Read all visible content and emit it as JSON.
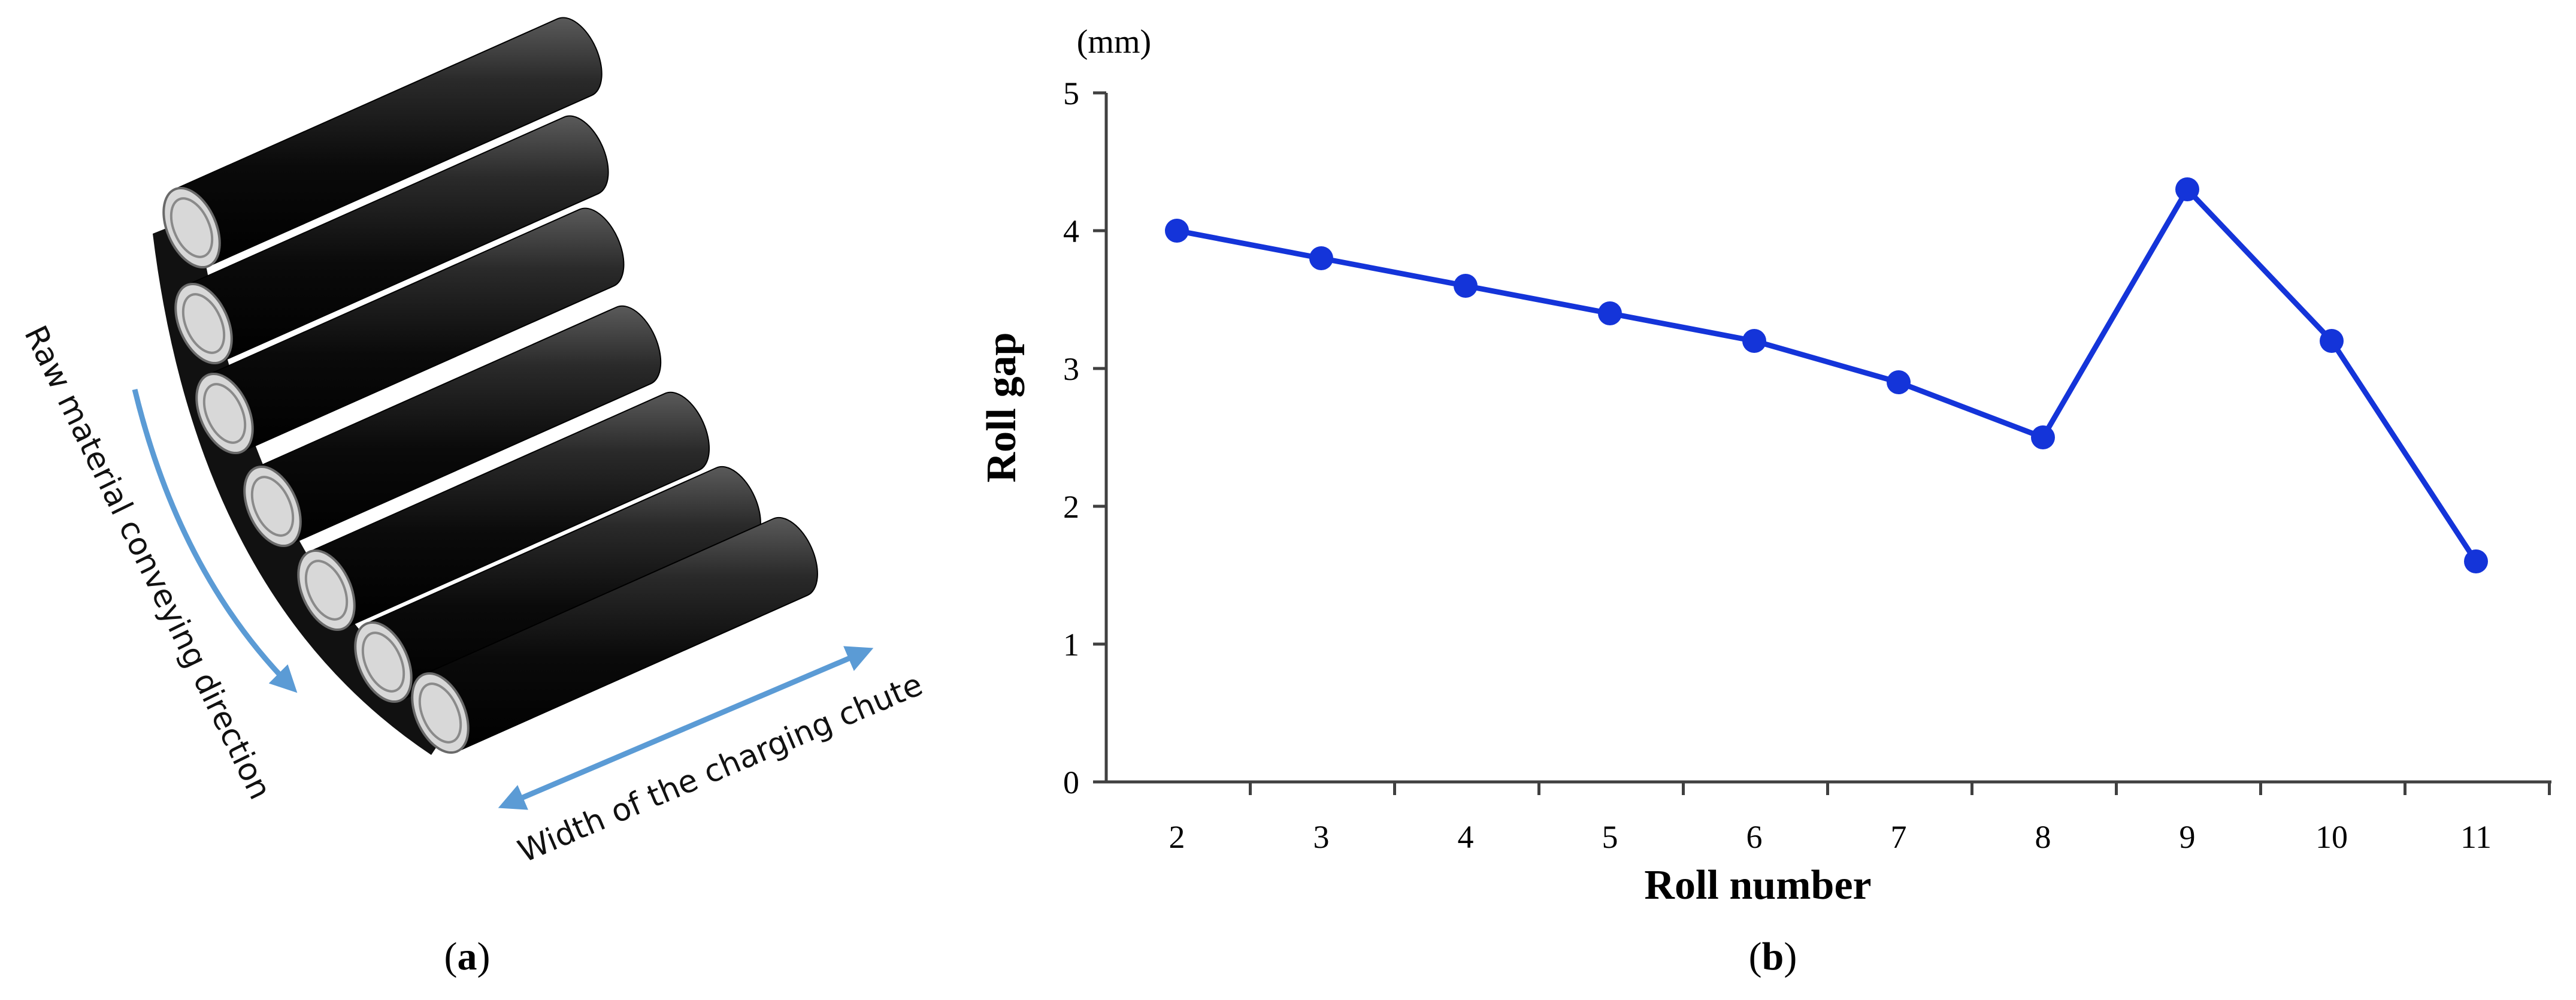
{
  "panel_a": {
    "caption": "(a)",
    "caption_open": "(",
    "caption_letter": "a",
    "caption_close": ")",
    "rolls_drawn": 7,
    "direction_label": "Raw material conveying direction",
    "width_label": "Width of the charging chute",
    "colors": {
      "roll_body": "#1a1a1a",
      "roll_end": "#d8d8d8",
      "arrow": "#5b9bd5"
    }
  },
  "panel_b": {
    "caption": "(b)",
    "caption_open": "(",
    "caption_letter": "b",
    "caption_close": ")"
  },
  "chart_data": {
    "type": "line",
    "title": "",
    "xlabel": "Roll number",
    "ylabel": "Roll gap",
    "yunit": "(mm)",
    "categories": [
      "2",
      "3",
      "4",
      "5",
      "6",
      "7",
      "8",
      "9",
      "10",
      "11"
    ],
    "series": [
      {
        "values": [
          4.0,
          3.8,
          3.6,
          3.4,
          3.2,
          2.9,
          2.5,
          4.3,
          3.2,
          1.6
        ],
        "color": "#1434d9"
      }
    ],
    "ylim": [
      0,
      5
    ],
    "yticks": [
      0,
      1,
      2,
      3,
      4,
      5
    ],
    "grid": false,
    "legend": "none"
  }
}
